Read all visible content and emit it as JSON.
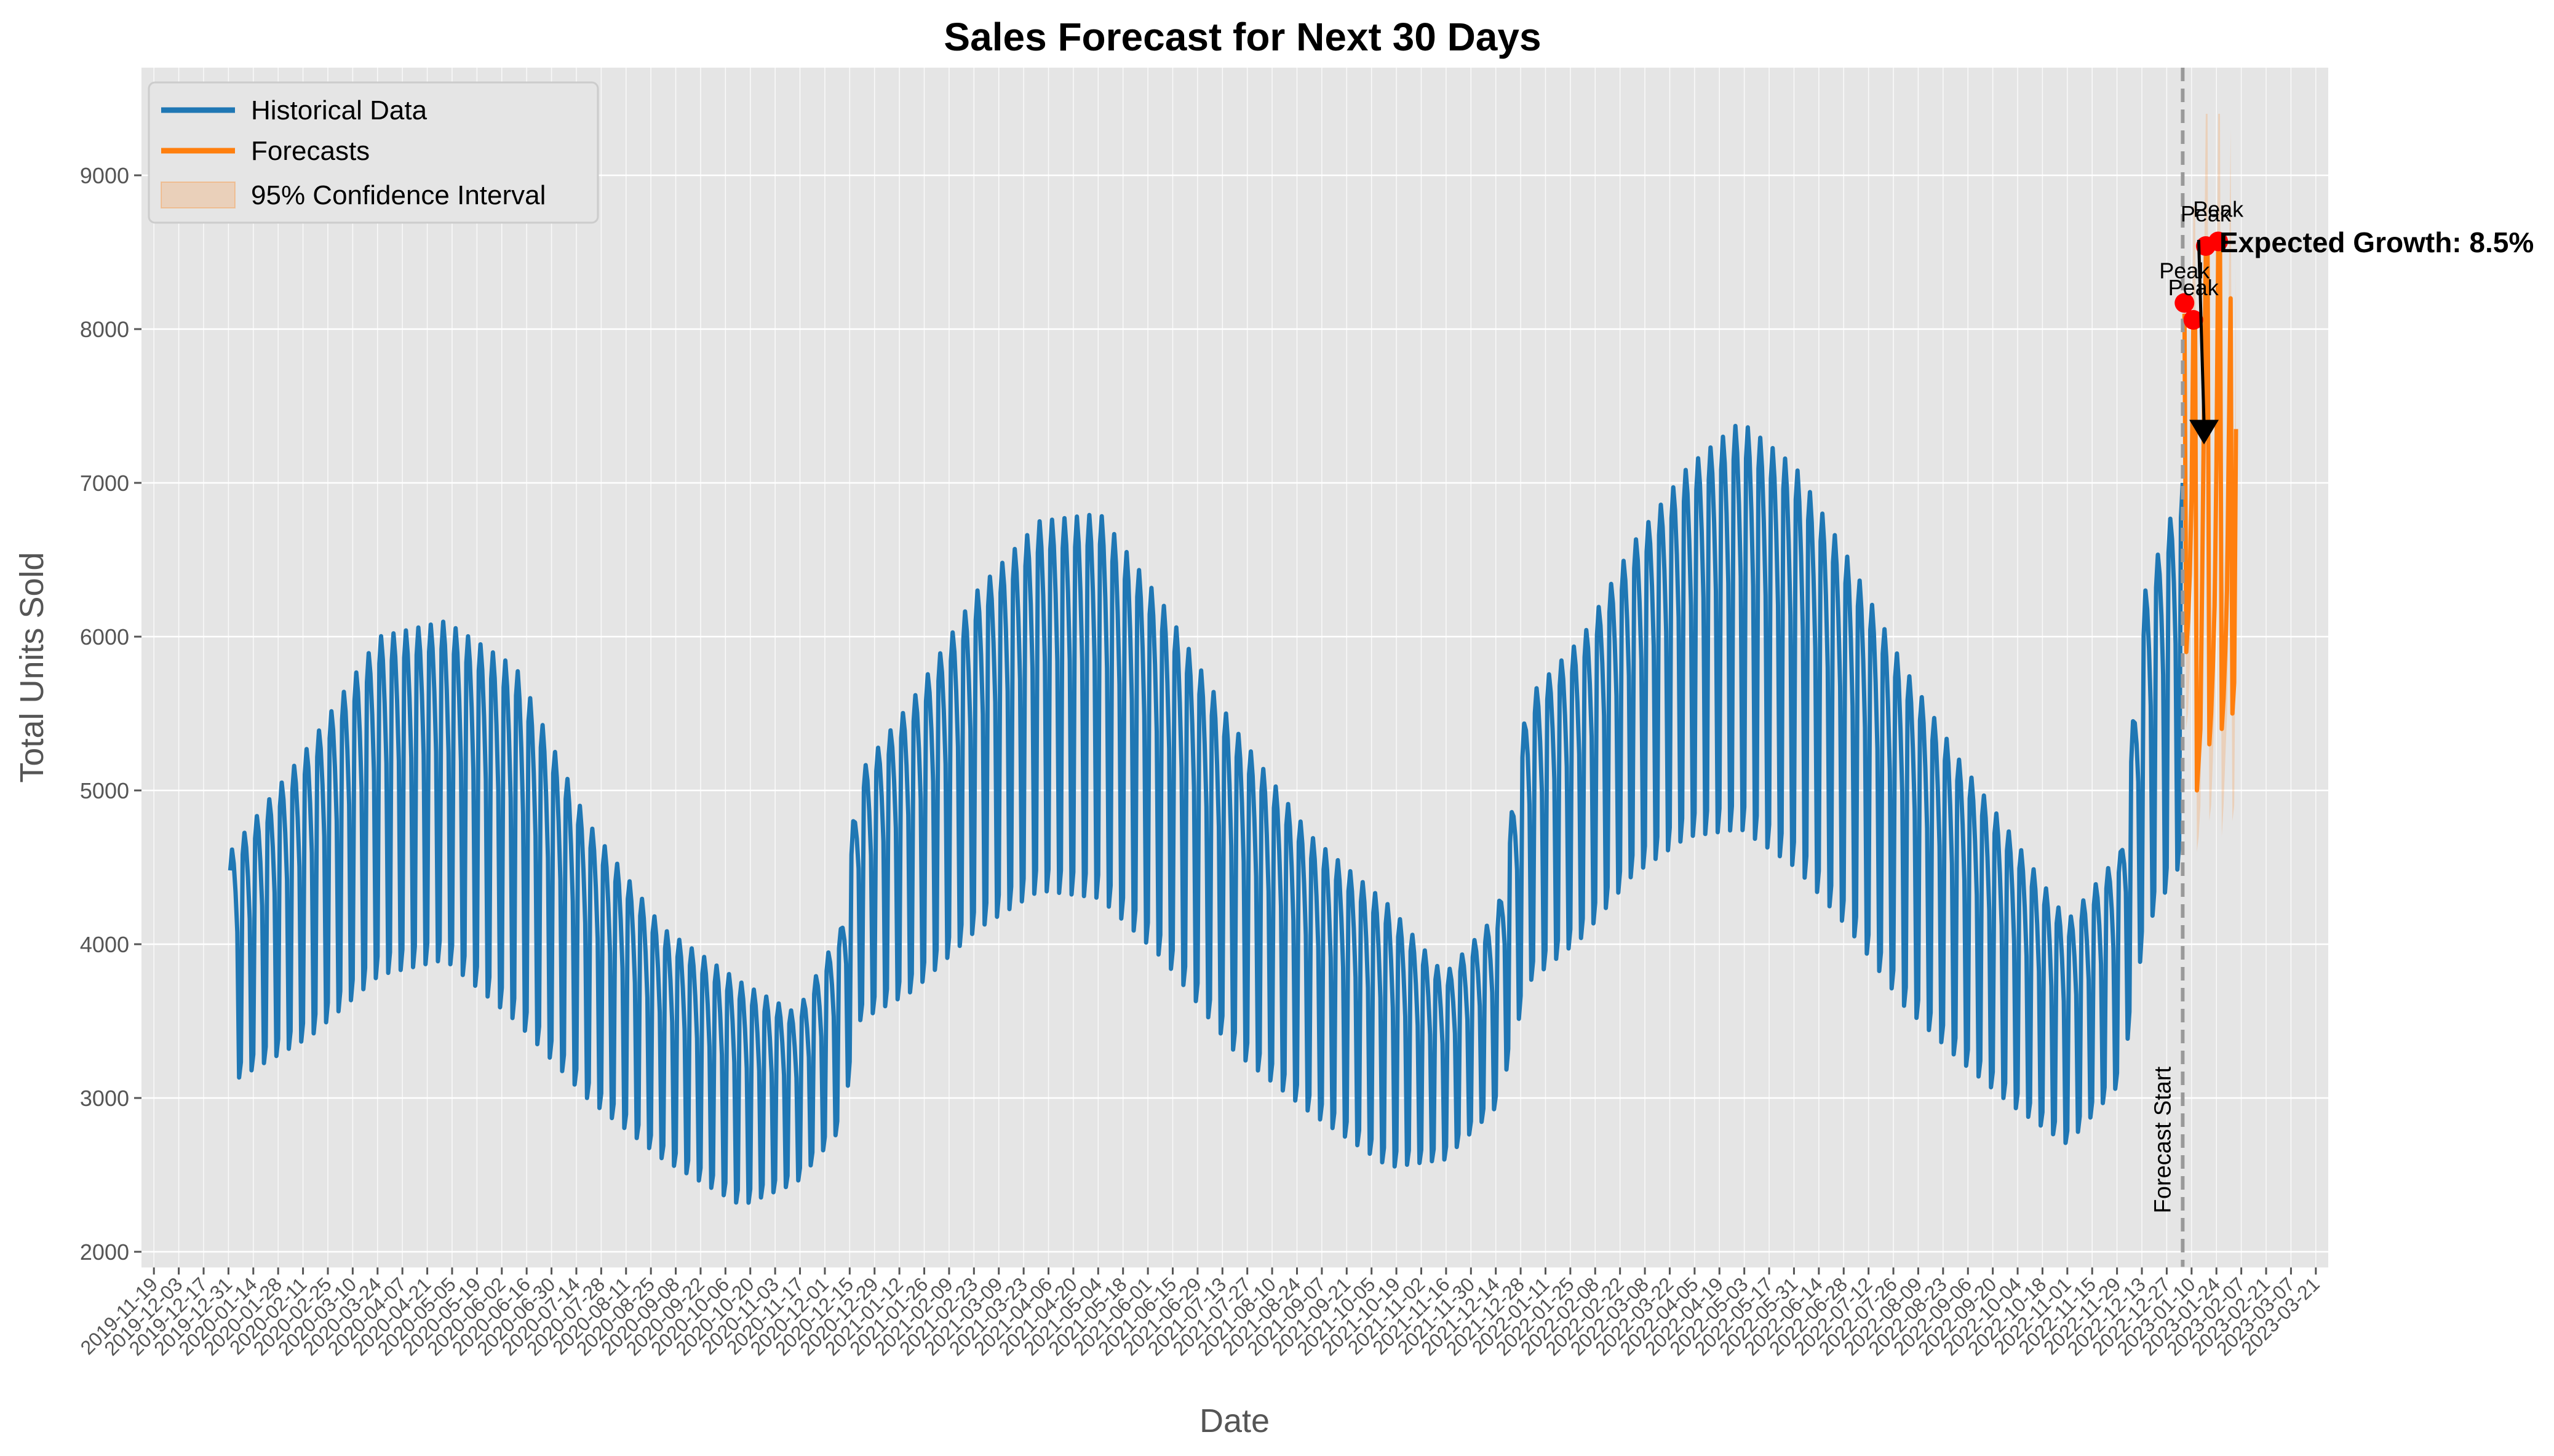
{
  "chart_data": {
    "type": "line",
    "title": "Sales Forecast for Next 30 Days",
    "xlabel": "Date",
    "ylabel": "Total Units Sold",
    "ylim": [
      1900,
      9700
    ],
    "yticks": [
      2000,
      3000,
      4000,
      5000,
      6000,
      7000,
      8000,
      9000
    ],
    "xlim": [
      "2019-11-12",
      "2023-03-28"
    ],
    "x_tick_start": "2019-11-19",
    "x_tick_end": "2023-03-21",
    "x_tick_step_days": 14,
    "grid": true,
    "legend_position": "top-left",
    "colors": {
      "historical": "#1f77b4",
      "forecast": "#ff7f0e",
      "confidence": "#ff7f0e",
      "peak": "#ff0000",
      "background": "#e5e5e5",
      "grid": "#ffffff",
      "forecast_start_line": "#999999"
    },
    "series": [
      {
        "name": "Historical Data",
        "style": "weekly-oscillating",
        "start": "2020-01-01",
        "end": "2023-01-05",
        "upper_envelope": [
          [
            "2020-01-01",
            4600
          ],
          [
            "2020-02-15",
            5300
          ],
          [
            "2020-03-25",
            6000
          ],
          [
            "2020-05-01",
            6100
          ],
          [
            "2020-06-10",
            5800
          ],
          [
            "2020-07-20",
            4800
          ],
          [
            "2020-09-01",
            4100
          ],
          [
            "2020-10-15",
            3750
          ],
          [
            "2020-11-15",
            3550
          ],
          [
            "2020-12-10",
            4100
          ],
          [
            "2020-12-20",
            5100
          ],
          [
            "2021-01-20",
            5600
          ],
          [
            "2021-02-25",
            6300
          ],
          [
            "2021-04-01",
            6750
          ],
          [
            "2021-05-05",
            6800
          ],
          [
            "2021-06-10",
            6200
          ],
          [
            "2021-07-20",
            5400
          ],
          [
            "2021-09-01",
            4700
          ],
          [
            "2021-10-15",
            4250
          ],
          [
            "2021-11-15",
            3800
          ],
          [
            "2021-12-15",
            4200
          ],
          [
            "2022-01-01",
            5600
          ],
          [
            "2022-02-01",
            6000
          ],
          [
            "2022-03-01",
            6600
          ],
          [
            "2022-04-01",
            7100
          ],
          [
            "2022-05-01",
            7400
          ],
          [
            "2022-06-01",
            7100
          ],
          [
            "2022-07-01",
            6500
          ],
          [
            "2022-08-01",
            5800
          ],
          [
            "2022-09-01",
            5200
          ],
          [
            "2022-10-01",
            4700
          ],
          [
            "2022-11-01",
            4150
          ],
          [
            "2022-12-01",
            4600
          ],
          [
            "2022-12-15",
            6300
          ],
          [
            "2023-01-05",
            7000
          ]
        ],
        "lower_envelope": [
          [
            "2020-01-01",
            3100
          ],
          [
            "2020-02-15",
            3400
          ],
          [
            "2020-03-25",
            3800
          ],
          [
            "2020-05-01",
            3900
          ],
          [
            "2020-06-10",
            3500
          ],
          [
            "2020-07-20",
            3000
          ],
          [
            "2020-09-01",
            2600
          ],
          [
            "2020-10-15",
            2300
          ],
          [
            "2020-11-15",
            2450
          ],
          [
            "2020-12-10",
            2800
          ],
          [
            "2020-12-20",
            3500
          ],
          [
            "2021-01-20",
            3700
          ],
          [
            "2021-02-25",
            4100
          ],
          [
            "2021-04-01",
            4350
          ],
          [
            "2021-05-05",
            4300
          ],
          [
            "2021-06-10",
            3900
          ],
          [
            "2021-07-20",
            3300
          ],
          [
            "2021-09-01",
            2900
          ],
          [
            "2021-10-15",
            2550
          ],
          [
            "2021-11-15",
            2600
          ],
          [
            "2021-12-15",
            2950
          ],
          [
            "2022-01-01",
            3750
          ],
          [
            "2022-02-01",
            4050
          ],
          [
            "2022-03-01",
            4450
          ],
          [
            "2022-04-01",
            4700
          ],
          [
            "2022-05-01",
            4750
          ],
          [
            "2022-06-01",
            4500
          ],
          [
            "2022-07-01",
            4100
          ],
          [
            "2022-08-01",
            3600
          ],
          [
            "2022-09-01",
            3250
          ],
          [
            "2022-10-01",
            2950
          ],
          [
            "2022-11-01",
            2700
          ],
          [
            "2022-12-01",
            3100
          ],
          [
            "2022-12-15",
            4100
          ],
          [
            "2023-01-05",
            4550
          ]
        ]
      },
      {
        "name": "Forecasts",
        "start": "2023-01-06",
        "values": [
          8100,
          5900,
          6100,
          6400,
          6900,
          8050,
          8000,
          5000,
          5200,
          5400,
          6400,
          7500,
          8500,
          8550,
          5300,
          5500,
          5800,
          6200,
          7100,
          8550,
          8600,
          5400,
          5600,
          5900,
          6300,
          7300,
          8200,
          5500,
          5700,
          7350
        ]
      },
      {
        "name": "95% Confidence Interval",
        "start": "2023-01-06",
        "lower": [
          7600,
          5400,
          5500,
          5800,
          6300,
          7300,
          7200,
          4600,
          4700,
          4900,
          5800,
          6700,
          7600,
          7600,
          4800,
          4900,
          5200,
          5600,
          6300,
          7600,
          7600,
          4700,
          4900,
          5200,
          5500,
          6300,
          7100,
          4800,
          4900,
          6300
        ],
        "upper": [
          8600,
          6400,
          6700,
          7000,
          7500,
          8800,
          8800,
          5500,
          5700,
          6000,
          7000,
          8300,
          9400,
          9400,
          5800,
          6100,
          6400,
          6800,
          7900,
          9400,
          9400,
          6100,
          6300,
          6600,
          7100,
          8300,
          9300,
          6200,
          6500,
          8400
        ]
      }
    ],
    "peaks": [
      {
        "date": "2023-01-06",
        "value": 8170,
        "label": "Peak"
      },
      {
        "date": "2023-01-11",
        "value": 8060,
        "label": "Peak"
      },
      {
        "date": "2023-01-18",
        "value": 8540,
        "label": "Peak"
      },
      {
        "date": "2023-01-25",
        "value": 8570,
        "label": "Peak"
      }
    ],
    "forecast_start": {
      "date": "2023-01-05",
      "label": "Forecast Start"
    },
    "growth_annotation": {
      "text": "Expected Growth: 8.5%",
      "arrow_from": [
        "2023-01-14",
        8580
      ],
      "arrow_to": [
        "2023-01-17",
        7250
      ]
    }
  }
}
